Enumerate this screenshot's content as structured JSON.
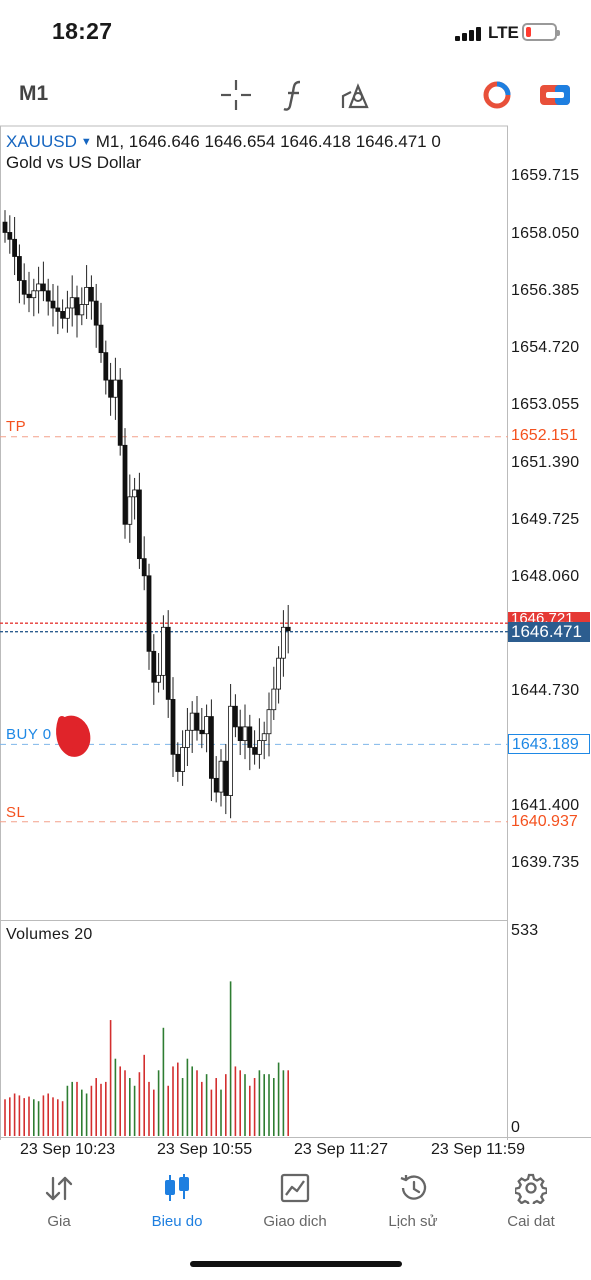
{
  "status_bar": {
    "time": "18:27",
    "network": "LTE"
  },
  "toolbar": {
    "timeframe": "M1",
    "icons": [
      "crosshair-icon",
      "function-icon",
      "objects-icon",
      "trade-toggle-icon",
      "one-click-trading-icon"
    ]
  },
  "chart": {
    "symbol": "XAUUSD",
    "ohlc_text": "M1, 1646.646 1646.654 1646.418 1646.471 0",
    "description": "Gold vs US Dollar",
    "price_axis": [
      "1659.715",
      "1658.050",
      "1656.385",
      "1654.720",
      "1653.055",
      "1651.390",
      "1649.725",
      "1648.060",
      "1644.730",
      "1641.400",
      "1639.735"
    ],
    "levels": {
      "tp": {
        "label": "TP",
        "price": "1652.151",
        "color": "#f4511e"
      },
      "buy": {
        "label": "BUY 0",
        "price": "1643.189",
        "color": "#1e88e5"
      },
      "sl": {
        "label": "SL",
        "price": "1640.937",
        "color": "#f4511e"
      },
      "ask": {
        "price": "1646.721",
        "color": "#e53935"
      },
      "bid": {
        "price": "1646.471",
        "color": "#2c5d8f"
      }
    },
    "volume_label": "Volumes 20",
    "volume_axis": [
      "533",
      "0"
    ],
    "time_axis": [
      "23 Sep 10:23",
      "23 Sep 10:55",
      "23 Sep 11:27",
      "23 Sep 11:59"
    ],
    "colors": {
      "bull": "#2e7d32",
      "bear": "#d32f2f",
      "accent": "#1e7fe0"
    }
  },
  "chart_data": {
    "type": "candlestick",
    "series": [
      {
        "name": "XAUUSD",
        "close": [
          1658.1,
          1657.9,
          1657.4,
          1656.7,
          1656.3,
          1656.2,
          1656.4,
          1656.6,
          1656.4,
          1656.1,
          1655.9,
          1655.8,
          1655.6,
          1655.9,
          1656.2,
          1655.7,
          1656.0,
          1656.5,
          1656.1,
          1655.4,
          1654.6,
          1653.8,
          1653.3,
          1653.8,
          1651.9,
          1649.6,
          1650.4,
          1650.6,
          1648.6,
          1648.1,
          1645.9,
          1645.0,
          1645.2,
          1646.6,
          1644.5,
          1642.9,
          1642.4,
          1643.1,
          1643.6,
          1644.1,
          1643.6,
          1643.5,
          1644.0,
          1642.2,
          1641.8,
          1642.7,
          1641.7,
          1644.3,
          1643.7,
          1643.3,
          1643.7,
          1643.1,
          1642.9,
          1643.3,
          1643.5,
          1644.2,
          1644.8,
          1645.7,
          1646.6,
          1646.5
        ],
        "open": [
          1658.4,
          1658.1,
          1657.9,
          1657.4,
          1656.7,
          1656.3,
          1656.2,
          1656.4,
          1656.6,
          1656.4,
          1656.1,
          1655.9,
          1655.8,
          1655.6,
          1655.9,
          1656.2,
          1655.7,
          1656.0,
          1656.5,
          1656.1,
          1655.4,
          1654.6,
          1653.8,
          1653.3,
          1653.8,
          1651.9,
          1649.6,
          1650.4,
          1650.6,
          1648.6,
          1648.1,
          1645.9,
          1645.0,
          1645.2,
          1646.6,
          1644.5,
          1642.9,
          1642.4,
          1643.1,
          1643.6,
          1644.1,
          1643.6,
          1643.5,
          1644.0,
          1642.2,
          1641.8,
          1642.7,
          1641.7,
          1644.3,
          1643.7,
          1643.3,
          1643.7,
          1643.1,
          1642.9,
          1643.3,
          1643.5,
          1644.2,
          1644.8,
          1645.7,
          1646.6
        ]
      },
      {
        "name": "Volumes 20"
      }
    ],
    "ylim": [
      1639.0,
      1660.5
    ],
    "volume_ylim": [
      0,
      533
    ],
    "volumes": [
      95,
      100,
      110,
      105,
      98,
      102,
      95,
      90,
      105,
      110,
      100,
      95,
      90,
      130,
      140,
      140,
      120,
      110,
      130,
      150,
      135,
      140,
      300,
      200,
      180,
      170,
      150,
      130,
      165,
      210,
      140,
      120,
      170,
      280,
      130,
      180,
      190,
      150,
      200,
      180,
      170,
      140,
      160,
      120,
      150,
      120,
      160,
      400,
      180,
      170,
      160,
      130,
      150,
      170,
      160,
      160,
      150,
      190,
      170,
      170
    ],
    "x_labels": [
      "23 Sep 10:23",
      "23 Sep 10:55",
      "23 Sep 11:27",
      "23 Sep 11:59"
    ],
    "levels": {
      "TP": 1652.151,
      "BUY": 1643.189,
      "SL": 1640.937,
      "ask": 1646.721,
      "bid": 1646.471
    }
  },
  "nav": [
    {
      "label": "Gia",
      "icon": "quotes-arrows-icon",
      "active": false
    },
    {
      "label": "Bieu do",
      "icon": "candlestick-chart-icon",
      "active": true
    },
    {
      "label": "Giao dich",
      "icon": "trade-chart-icon",
      "active": false
    },
    {
      "label": "Lịch sử",
      "icon": "history-clock-icon",
      "active": false
    },
    {
      "label": "Cai dat",
      "icon": "settings-gear-icon",
      "active": false
    }
  ]
}
